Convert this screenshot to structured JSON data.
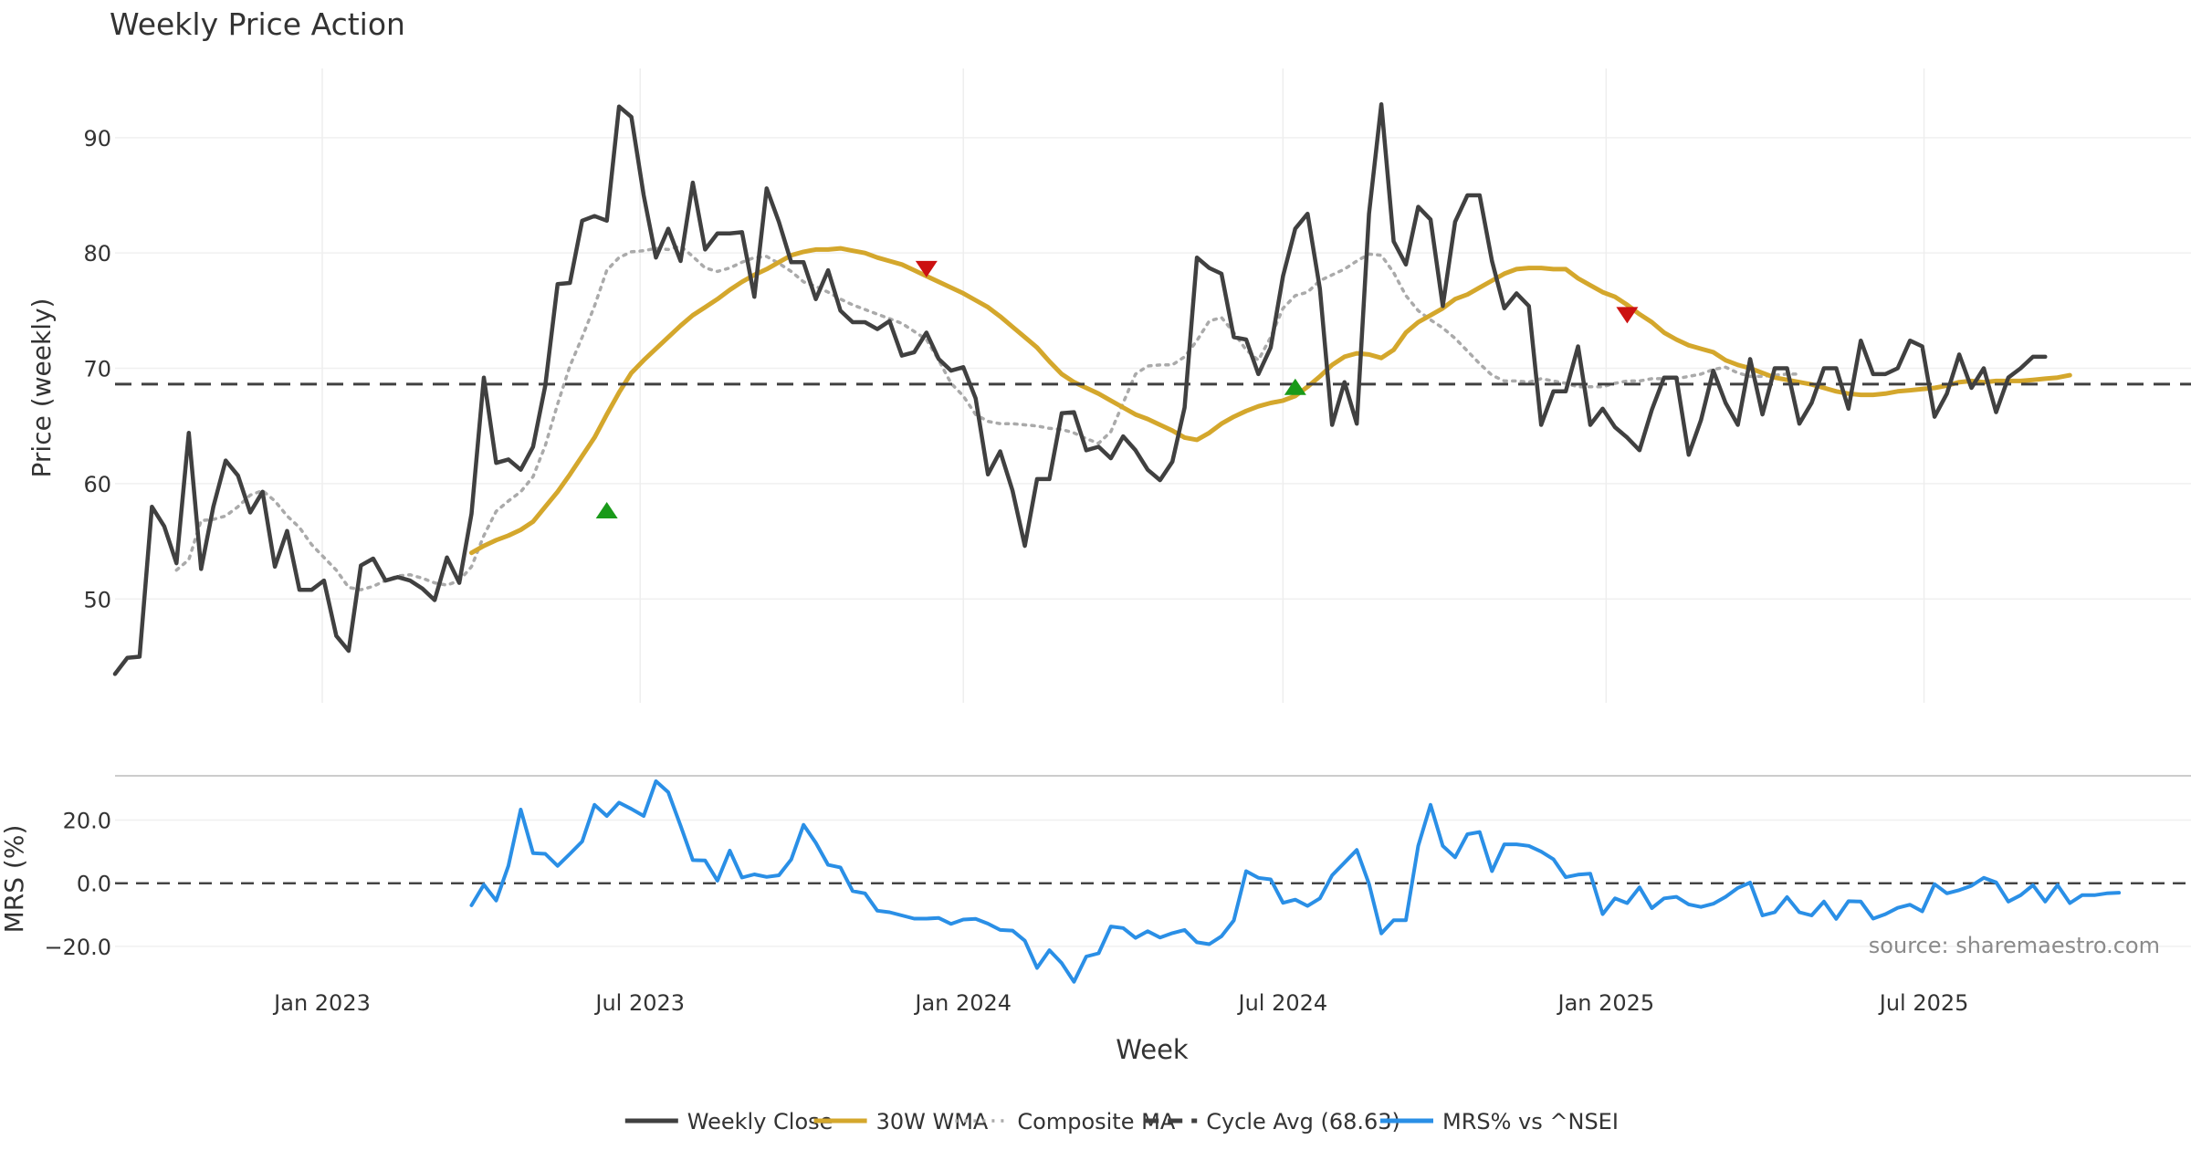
{
  "chart_data": [
    {
      "type": "line",
      "title": "Weekly Price Action",
      "ylabel": "Price (weekly)",
      "xlim": [
        "2022-09-05",
        "2025-11-30"
      ],
      "ylim": [
        41,
        96
      ],
      "yticks": [
        50,
        60,
        70,
        80,
        90
      ],
      "x_tick_dates": [
        "2023-01-01",
        "2023-07-01",
        "2024-01-01",
        "2024-07-01",
        "2025-01-01",
        "2025-07-01"
      ],
      "x_tick_labels": [
        "Jan 2023",
        "Jul 2023",
        "Jan 2024",
        "Jul 2024",
        "Jan 2025",
        "Jul 2025"
      ],
      "start_date": "2022-09-05",
      "interval_days": 7,
      "series": [
        {
          "name": "Weekly Close",
          "color": "#404040",
          "start_index": 0,
          "values": [
            43.5,
            44.9,
            45.0,
            58.0,
            56.3,
            53.1,
            64.4,
            52.6,
            58.0,
            62.0,
            60.7,
            57.5,
            59.3,
            52.8,
            55.9,
            50.8,
            50.8,
            51.6,
            46.8,
            45.5,
            52.9,
            53.5,
            51.6,
            51.9,
            51.6,
            50.9,
            49.9,
            53.6,
            51.4,
            57.4,
            69.2,
            61.8,
            62.1,
            61.2,
            63.2,
            68.5,
            77.3,
            77.4,
            82.8,
            83.2,
            82.8,
            92.7,
            91.8,
            85.0,
            79.6,
            82.1,
            79.3,
            86.1,
            80.3,
            81.7,
            81.7,
            81.8,
            76.2,
            85.6,
            82.7,
            79.2,
            79.2,
            76.0,
            78.5,
            75.0,
            74.0,
            74.0,
            73.4,
            74.1,
            71.1,
            71.4,
            73.1,
            70.8,
            69.8,
            70.1,
            67.4,
            60.8,
            62.8,
            59.4,
            54.6,
            60.4,
            60.4,
            66.1,
            66.2,
            62.9,
            63.2,
            62.2,
            64.1,
            62.9,
            61.2,
            60.3,
            61.9,
            66.6,
            79.6,
            78.7,
            78.2,
            72.7,
            72.5,
            69.5,
            71.8,
            78.0,
            82.1,
            83.4,
            76.9,
            65.1,
            68.8,
            65.2,
            83.4,
            92.9,
            81.0,
            79.0,
            84.0,
            82.9,
            75.4,
            82.7,
            85.0,
            85.0,
            79.3,
            75.2,
            76.5,
            75.4,
            65.1,
            68.0,
            68.0,
            71.9,
            65.1,
            66.5,
            64.9,
            64.0,
            62.9,
            66.4,
            69.2,
            69.2,
            62.5,
            65.5,
            69.8,
            67.0,
            65.1,
            70.8,
            66.0,
            70.0,
            70.0,
            65.2,
            67.0,
            70.0,
            70.0,
            66.5,
            72.4,
            69.5,
            69.5,
            70.0,
            72.4,
            71.9,
            65.8,
            67.8,
            71.2,
            68.3,
            70.0,
            66.2,
            69.2,
            70.0,
            71.0,
            71.0
          ]
        },
        {
          "name": "30W WMA",
          "color": "#d4a72c",
          "start_index": 29,
          "values": [
            54.0,
            54.6,
            55.1,
            55.5,
            56.0,
            56.7,
            58.0,
            59.3,
            60.8,
            62.4,
            64.0,
            66.0,
            67.9,
            69.6,
            70.7,
            71.7,
            72.7,
            73.7,
            74.6,
            75.3,
            76.0,
            76.8,
            77.5,
            78.1,
            78.6,
            79.2,
            79.8,
            80.1,
            80.3,
            80.3,
            80.4,
            80.2,
            80.0,
            79.6,
            79.3,
            79.0,
            78.5,
            78.0,
            77.5,
            77.0,
            76.5,
            75.9,
            75.3,
            74.5,
            73.6,
            72.7,
            71.8,
            70.6,
            69.5,
            68.8,
            68.3,
            67.8,
            67.2,
            66.6,
            66.0,
            65.6,
            65.1,
            64.6,
            64.0,
            63.8,
            64.4,
            65.2,
            65.8,
            66.3,
            66.7,
            67.0,
            67.2,
            67.6,
            68.4,
            69.3,
            70.3,
            71.0,
            71.3,
            71.2,
            70.9,
            71.6,
            73.1,
            74.0,
            74.6,
            75.2,
            76.0,
            76.4,
            77.0,
            77.6,
            78.2,
            78.6,
            78.7,
            78.7,
            78.6,
            78.6,
            77.8,
            77.2,
            76.6,
            76.2,
            75.5,
            74.7,
            74.0,
            73.1,
            72.5,
            72.0,
            71.7,
            71.4,
            70.7,
            70.3,
            70.0,
            69.6,
            69.2,
            69.0,
            68.8,
            68.6,
            68.3,
            68.0,
            67.8,
            67.7,
            67.7,
            67.8,
            68.0,
            68.1,
            68.2,
            68.3,
            68.5,
            68.8,
            68.9,
            68.8,
            68.9,
            68.9,
            68.9,
            69.0,
            69.1,
            69.2,
            69.4
          ]
        },
        {
          "name": "Composite MA",
          "color": "#aaaaaa",
          "start_index": 5,
          "values": [
            52.5,
            53.4,
            56.8,
            56.9,
            57.2,
            58.0,
            59.0,
            59.4,
            58.5,
            57.2,
            56.2,
            54.7,
            53.6,
            52.5,
            51.0,
            50.8,
            51.1,
            51.6,
            52.0,
            52.1,
            51.8,
            51.4,
            51.2,
            51.6,
            52.8,
            55.5,
            57.6,
            58.5,
            59.3,
            60.6,
            63.3,
            66.9,
            70.2,
            72.7,
            75.4,
            78.5,
            79.6,
            80.1,
            80.2,
            80.4,
            80.3,
            80.6,
            79.7,
            78.7,
            78.4,
            78.7,
            79.2,
            79.6,
            79.7,
            79.1,
            78.4,
            77.5,
            77.1,
            76.6,
            76.0,
            75.5,
            75.1,
            74.7,
            74.3,
            73.9,
            73.2,
            72.5,
            70.7,
            68.7,
            67.6,
            66.0,
            65.4,
            65.2,
            65.2,
            65.1,
            65.0,
            64.8,
            64.7,
            64.4,
            63.9,
            63.5,
            64.5,
            67.0,
            69.5,
            70.2,
            70.3,
            70.3,
            71.0,
            72.4,
            74.1,
            74.4,
            73.1,
            71.6,
            70.7,
            72.7,
            75.2,
            76.3,
            76.6,
            77.6,
            78.1,
            78.6,
            79.3,
            79.9,
            79.8,
            78.3,
            76.3,
            75.0,
            74.2,
            73.5,
            72.6,
            71.5,
            70.4,
            69.4,
            68.9,
            68.9,
            68.8,
            69.1,
            68.9,
            68.7,
            68.4,
            68.4,
            68.4,
            68.7,
            68.9,
            68.9,
            69.1,
            69.1,
            69.1,
            69.3,
            69.5,
            69.9,
            70.1,
            69.6,
            69.3,
            69.3,
            69.4,
            69.5,
            69.5
          ]
        },
        {
          "name": "Cycle Avg (68.63)",
          "color": "#404040",
          "constant": 68.63
        }
      ],
      "signals": [
        {
          "kind": "buy",
          "date": "2023-06-12",
          "value": 57.7,
          "color": "#1a9a1a"
        },
        {
          "kind": "sell",
          "date": "2023-12-11",
          "value": 78.6,
          "color": "#cc1111"
        },
        {
          "kind": "buy",
          "date": "2024-07-08",
          "value": 68.4,
          "color": "#1a9a1a"
        },
        {
          "kind": "sell",
          "date": "2025-01-13",
          "value": 74.6,
          "color": "#cc1111"
        }
      ]
    },
    {
      "type": "line",
      "ylabel": "MRS (%)",
      "xlabel": "Week",
      "ylim": [
        -31,
        34
      ],
      "yticks": [
        -20,
        0,
        20
      ],
      "ytick_labels": [
        "−20.0",
        "0.0",
        "20.0"
      ],
      "reference_line": 0,
      "series": [
        {
          "name": "MRS% vs ^NSEI",
          "color": "#2a8fe6",
          "start_index": 29,
          "values": [
            -7.0,
            -0.5,
            -5.5,
            5.5,
            23.3,
            9.5,
            9.3,
            5.5,
            9.3,
            13.2,
            24.8,
            21.3,
            25.5,
            23.5,
            21.3,
            32.3,
            28.8,
            18.2,
            7.3,
            7.2,
            0.8,
            10.3,
            1.8,
            2.8,
            2.0,
            2.5,
            7.5,
            18.5,
            12.8,
            5.8,
            5.0,
            -2.5,
            -3.2,
            -8.7,
            -9.2,
            -10.2,
            -11.2,
            -11.2,
            -11.0,
            -12.9,
            -11.5,
            -11.3,
            -12.8,
            -14.8,
            -15.0,
            -18.2,
            -26.8,
            -21.2,
            -25.3,
            -31.2,
            -23.2,
            -22.2,
            -13.7,
            -14.2,
            -17.3,
            -15.2,
            -17.2,
            -15.8,
            -14.8,
            -18.7,
            -19.3,
            -16.8,
            -11.8,
            3.8,
            1.7,
            1.2,
            -6.2,
            -5.2,
            -7.2,
            -4.8,
            2.5,
            6.5,
            10.5,
            -0.2,
            -15.9,
            -11.7,
            -11.7,
            11.8,
            24.8,
            11.8,
            8.2,
            15.5,
            16.2,
            3.8,
            12.3,
            12.3,
            11.8,
            10.0,
            7.6,
            1.9,
            2.7,
            3.0,
            -9.8,
            -4.8,
            -6.3,
            -1.3,
            -7.9,
            -4.8,
            -4.3,
            -6.7,
            -7.5,
            -6.5,
            -4.3,
            -1.5,
            0.2,
            -10.2,
            -9.2,
            -4.4,
            -9.2,
            -10.2,
            -5.8,
            -11.3,
            -5.7,
            -5.8,
            -11.2,
            -9.8,
            -7.8,
            -6.8,
            -8.9,
            -0.3,
            -3.2,
            -2.2,
            -0.8,
            1.7,
            0.3,
            -5.8,
            -3.8,
            -0.6,
            -5.8,
            -0.6,
            -6.3,
            -3.8,
            -3.8,
            -3.2,
            -3.0
          ]
        }
      ]
    }
  ],
  "source_note": "source: sharemaestro.com",
  "legend": [
    {
      "label": "Weekly Close",
      "style": "solid",
      "color": "#404040"
    },
    {
      "label": "30W WMA",
      "style": "solid",
      "color": "#d4a72c"
    },
    {
      "label": "Composite MA",
      "style": "dotted",
      "color": "#aaaaaa"
    },
    {
      "label": "Cycle Avg (68.63)",
      "style": "dashed",
      "color": "#404040"
    },
    {
      "label": "MRS% vs ^NSEI",
      "style": "solid",
      "color": "#2a8fe6"
    }
  ]
}
